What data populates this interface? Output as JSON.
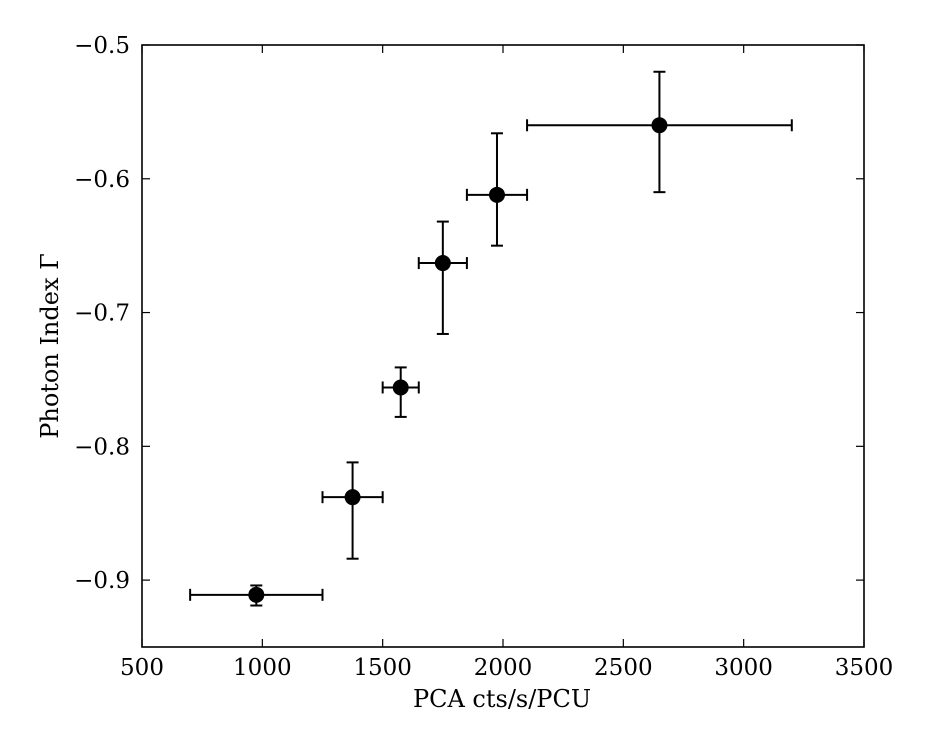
{
  "chart_data": {
    "type": "scatter",
    "title": "",
    "xlabel": "PCA cts/s/PCU",
    "ylabel": "Photon Index Γ",
    "xlim": [
      500,
      3500
    ],
    "ylim": [
      -0.95,
      -0.5
    ],
    "xticks": [
      500,
      1000,
      1500,
      2000,
      2500,
      3000,
      3500
    ],
    "yticks": [
      -0.9,
      -0.8,
      -0.7,
      -0.6,
      -0.5
    ],
    "xtick_labels": [
      "500",
      "1000",
      "1500",
      "2000",
      "2500",
      "3000",
      "3500"
    ],
    "ytick_labels": [
      "−0.9",
      "−0.8",
      "−0.7",
      "−0.6",
      "−0.5"
    ],
    "grid": false,
    "marker_color": "#000000",
    "points": [
      {
        "x": 975,
        "y": -0.911,
        "xerr_low": 700,
        "xerr_high": 1250,
        "yerr_low": -0.919,
        "yerr_high": -0.904
      },
      {
        "x": 1375,
        "y": -0.838,
        "xerr_low": 1250,
        "xerr_high": 1500,
        "yerr_low": -0.884,
        "yerr_high": -0.812
      },
      {
        "x": 1575,
        "y": -0.756,
        "xerr_low": 1500,
        "xerr_high": 1650,
        "yerr_low": -0.778,
        "yerr_high": -0.741
      },
      {
        "x": 1750,
        "y": -0.663,
        "xerr_low": 1650,
        "xerr_high": 1850,
        "yerr_low": -0.716,
        "yerr_high": -0.632
      },
      {
        "x": 1975,
        "y": -0.612,
        "xerr_low": 1850,
        "xerr_high": 2100,
        "yerr_low": -0.65,
        "yerr_high": -0.566
      },
      {
        "x": 2650,
        "y": -0.56,
        "xerr_low": 2100,
        "xerr_high": 3200,
        "yerr_low": -0.61,
        "yerr_high": -0.52
      }
    ]
  }
}
